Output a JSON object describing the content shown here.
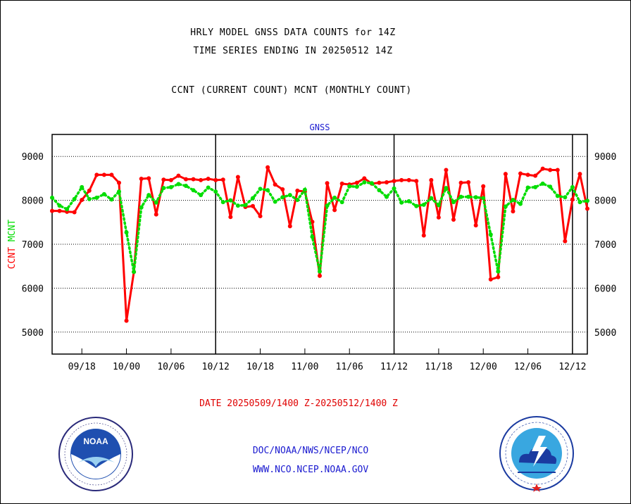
{
  "header": {
    "title_line1": "HRLY MODEL GNSS DATA COUNTS for 14Z",
    "title_line2": "TIME SERIES ENDING IN 20250512 14Z",
    "subtitle": "CCNT (CURRENT COUNT) MCNT (MONTHLY COUNT)"
  },
  "chart_data": {
    "type": "line",
    "title": "GNSS",
    "ylabel_left": [
      "CCNT",
      "MCNT"
    ],
    "ylabel_left_colors": [
      "#ff0000",
      "#00dd00"
    ],
    "ylim": [
      4500,
      9500
    ],
    "yticks": [
      5000,
      6000,
      7000,
      8000,
      9000
    ],
    "ytick_labels": [
      "5000",
      "6000",
      "7000",
      "8000",
      "9000"
    ],
    "xlim": [
      0,
      72
    ],
    "xticks": [
      4,
      10,
      16,
      22,
      28,
      34,
      40,
      46,
      52,
      58,
      64,
      70
    ],
    "xtick_labels": [
      "09/18",
      "10/00",
      "10/06",
      "10/12",
      "10/18",
      "11/00",
      "11/06",
      "11/12",
      "11/18",
      "12/00",
      "12/06",
      "12/12"
    ],
    "day_dividers": [
      22,
      46,
      70
    ],
    "grid": true,
    "series": [
      {
        "name": "CCNT",
        "color": "#ff0000",
        "style": "solid",
        "x": [
          0,
          1,
          2,
          3,
          4,
          5,
          6,
          7,
          8,
          9,
          10,
          11,
          12,
          13,
          14,
          15,
          16,
          17,
          18,
          19,
          20,
          21,
          22,
          23,
          24,
          25,
          26,
          27,
          28,
          29,
          30,
          31,
          32,
          33,
          34,
          35,
          36,
          37,
          38,
          39,
          40,
          41,
          42,
          43,
          44,
          45,
          46,
          47,
          48,
          49,
          50,
          51,
          52,
          53,
          54,
          55,
          56,
          57,
          58,
          59,
          60,
          61,
          62,
          63,
          64,
          65,
          66,
          67,
          68,
          69,
          70,
          71,
          72
        ],
        "values": [
          7760,
          7760,
          7740,
          7730,
          8010,
          8220,
          8580,
          8580,
          8580,
          8400,
          5260,
          6370,
          8490,
          8500,
          7680,
          8470,
          8460,
          8560,
          8480,
          8480,
          8460,
          8490,
          8460,
          8470,
          7620,
          8530,
          7850,
          7870,
          7640,
          8750,
          8360,
          8250,
          7410,
          8220,
          8200,
          7510,
          6280,
          8390,
          7780,
          8380,
          8360,
          8400,
          8500,
          8380,
          8400,
          8410,
          8440,
          8460,
          8460,
          8440,
          7200,
          8460,
          7610,
          8690,
          7560,
          8400,
          8410,
          7430,
          8320,
          6200,
          6250,
          8600,
          7750,
          8610,
          8580,
          8560,
          8720,
          8690,
          8690,
          7070,
          8020,
          8600,
          7810
        ]
      },
      {
        "name": "MCNT",
        "color": "#00dd00",
        "style": "dotted",
        "x": [
          0,
          1,
          2,
          3,
          4,
          5,
          6,
          7,
          8,
          9,
          10,
          11,
          12,
          13,
          14,
          15,
          16,
          17,
          18,
          19,
          20,
          21,
          22,
          23,
          24,
          25,
          26,
          27,
          28,
          29,
          30,
          31,
          32,
          33,
          34,
          35,
          36,
          37,
          38,
          39,
          40,
          41,
          42,
          43,
          44,
          45,
          46,
          47,
          48,
          49,
          50,
          51,
          52,
          53,
          54,
          55,
          56,
          57,
          58,
          59,
          60,
          61,
          62,
          63,
          64,
          65,
          66,
          67,
          68,
          69,
          70,
          71,
          72
        ],
        "values": [
          8060,
          7880,
          7800,
          8030,
          8300,
          8030,
          8060,
          8140,
          8020,
          8200,
          7270,
          6370,
          7840,
          8120,
          7950,
          8280,
          8300,
          8370,
          8330,
          8230,
          8120,
          8290,
          8200,
          7960,
          8000,
          7880,
          7890,
          8050,
          8260,
          8230,
          7970,
          8070,
          8120,
          8010,
          8240,
          7170,
          6380,
          7880,
          8060,
          7960,
          8320,
          8310,
          8410,
          8390,
          8230,
          8080,
          8270,
          7950,
          7980,
          7870,
          7900,
          8050,
          7890,
          8280,
          7960,
          8080,
          8080,
          8070,
          8050,
          7220,
          6380,
          7860,
          8010,
          7920,
          8290,
          8300,
          8380,
          8310,
          8100,
          8070,
          8300,
          7960,
          7990
        ]
      }
    ]
  },
  "date_range": "DATE 20250509/1400 Z-20250512/1400 Z",
  "footer": {
    "line1": "DOC/NOAA/NWS/NCEP/NCO",
    "line2": "WWW.NCO.NCEP.NOAA.GOV"
  },
  "logos": {
    "noaa": {
      "text": "NOAA",
      "ring_text": "NATIONAL OCEANIC AND ATMOSPHERIC ADMINISTRATION · U.S. DEPARTMENT OF COMMERCE"
    },
    "nws": {
      "ring_text": "NATIONAL WEATHER SERVICE"
    }
  }
}
